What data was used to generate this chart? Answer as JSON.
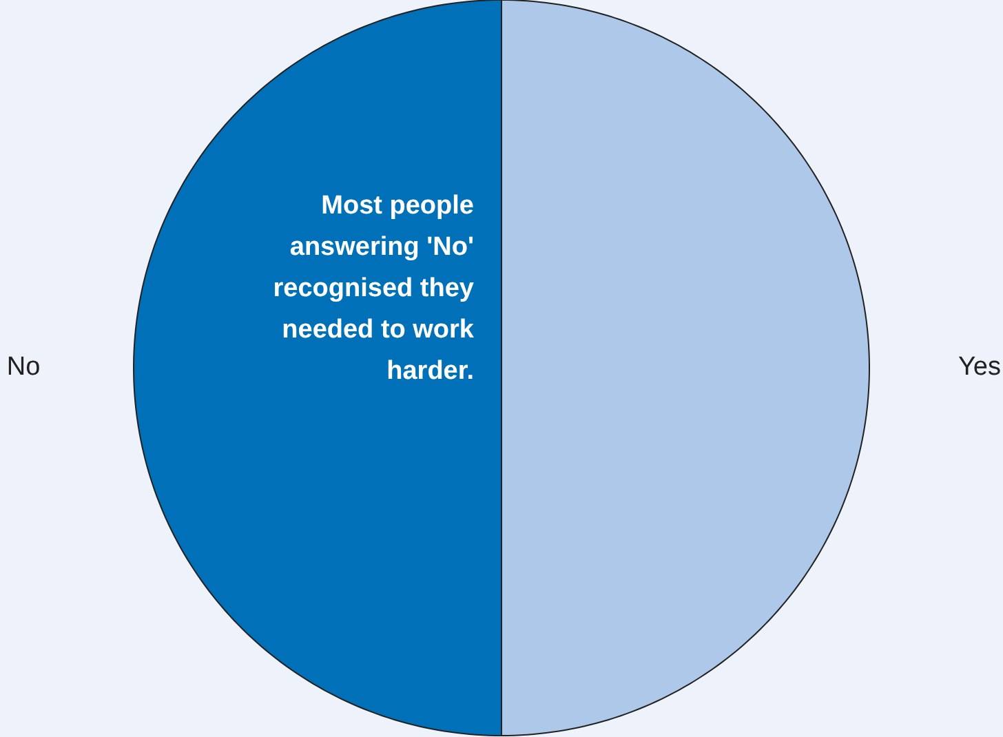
{
  "chart_data": {
    "type": "pie",
    "categories": [
      "Yes",
      "No"
    ],
    "values": [
      50,
      50
    ],
    "colors": [
      "#adc8e8",
      "#0070b8"
    ],
    "annotations": [
      {
        "text": "Most people answering 'No' recognised they needed to work harder.",
        "x": "No"
      }
    ]
  }
}
